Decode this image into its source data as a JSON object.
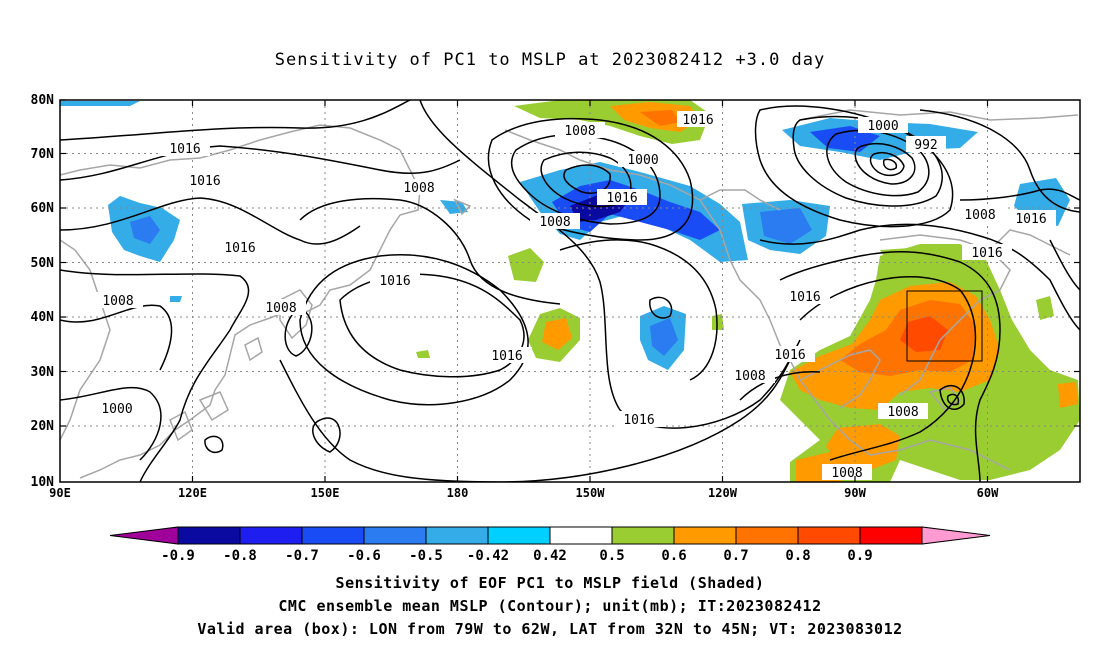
{
  "title": "Sensitivity of PC1 to MSLP at 2023082412 +3.0 day",
  "lat_labels": [
    "80N",
    "70N",
    "60N",
    "50N",
    "40N",
    "30N",
    "20N",
    "10N"
  ],
  "lon_labels": [
    "90E",
    "120E",
    "150E",
    "180",
    "150W",
    "120W",
    "90W",
    "60W"
  ],
  "contour_labels": [
    "1016",
    "1008",
    "1000",
    "1016",
    "1008",
    "992",
    "1008",
    "1016",
    "1008",
    "1016",
    "1008",
    "1016",
    "1016",
    "1016",
    "1008",
    "1016",
    "1008",
    "1016",
    "1008",
    "1000",
    "1016",
    "1008",
    "1008",
    "1016",
    "1008"
  ],
  "colorbar": {
    "labels": [
      "-0.9",
      "-0.8",
      "-0.7",
      "-0.6",
      "-0.5",
      "-0.42",
      "0.42",
      "0.5",
      "0.6",
      "0.7",
      "0.8",
      "0.9"
    ],
    "colors": [
      "#a0009a",
      "#0a0aa0",
      "#1e1ef0",
      "#1a4cf5",
      "#2a7cf0",
      "#33ace8",
      "#00d0ff",
      "#ffffff",
      "#9acd32",
      "#ff9a00",
      "#ff7300",
      "#ff4a00",
      "#ff0000",
      "#ff9ad2"
    ]
  },
  "footer": {
    "line1": "Sensitivity of EOF PC1 to MSLP field (Shaded)",
    "line2": "CMC ensemble mean MSLP (Contour); unit(mb); IT:2023082412",
    "line3": "Valid area (box): LON from 79W to 62W, LAT from 32N to 45N; VT: 2023083012"
  }
}
